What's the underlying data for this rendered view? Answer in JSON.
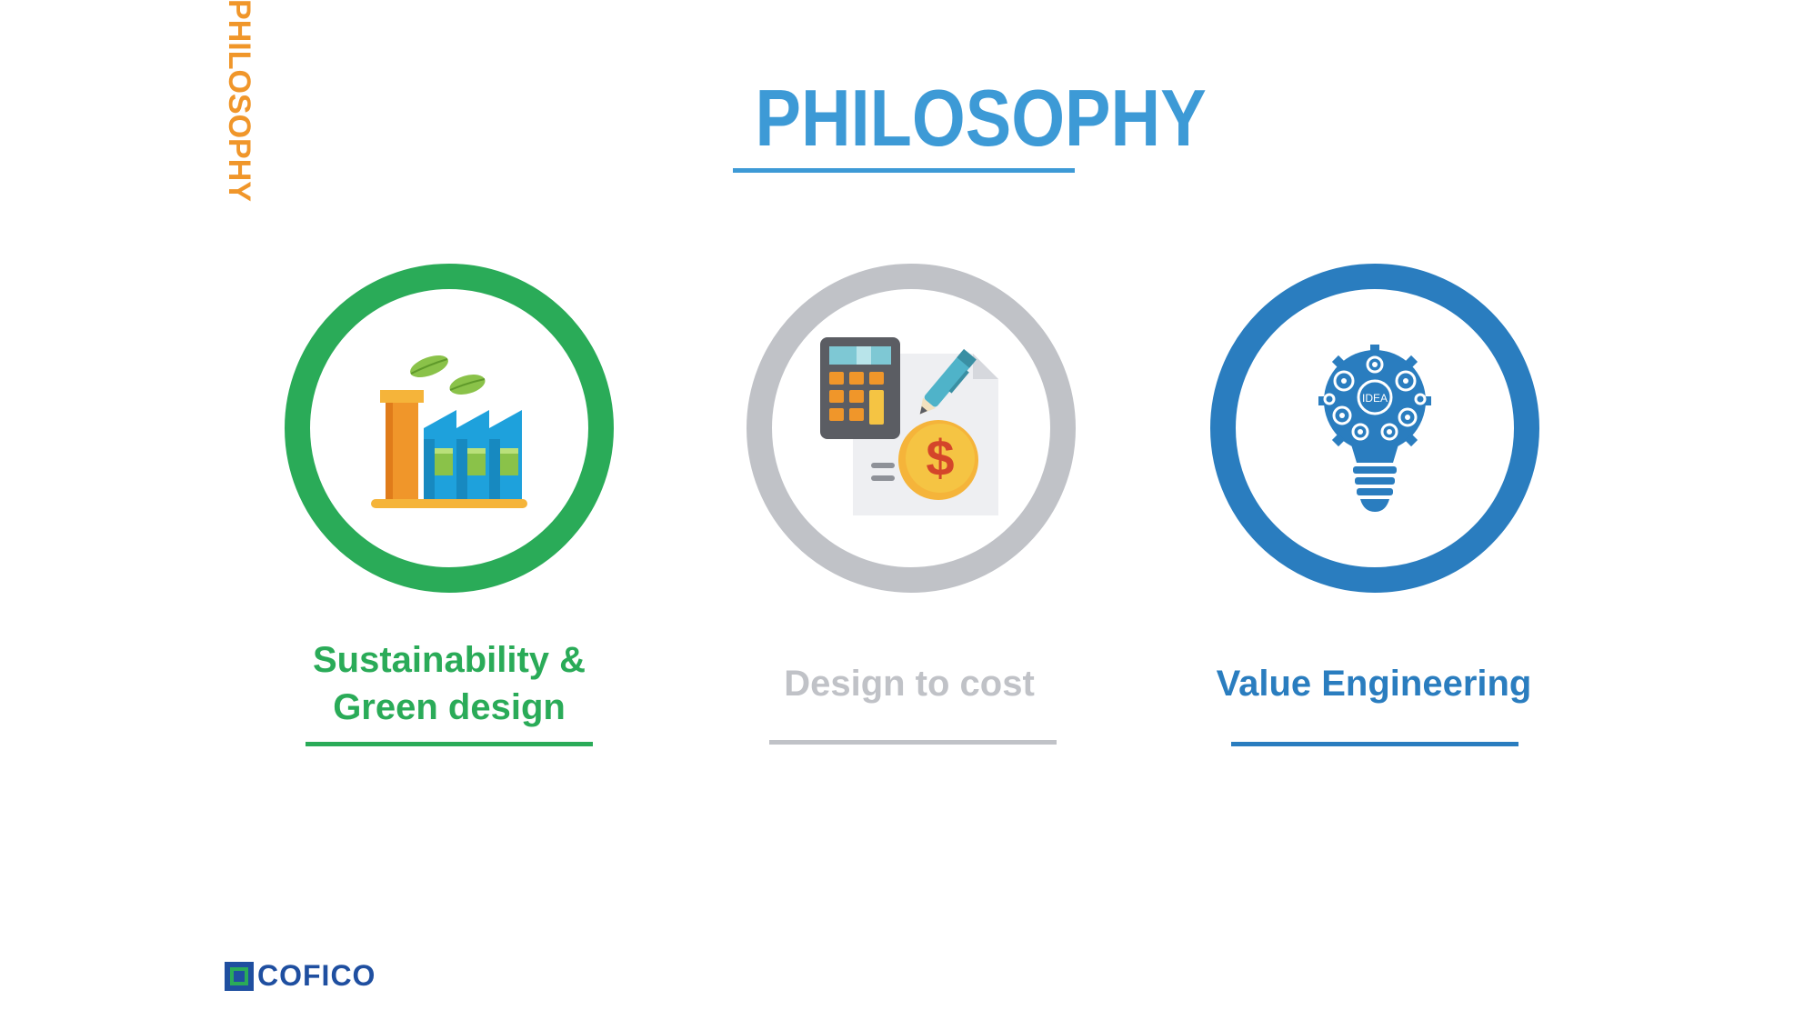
{
  "side_title": "PHILOSOPHY",
  "title": "PHILOSOPHY",
  "colors": {
    "orange": "#f0962a",
    "title_blue": "#3d9ad6",
    "green": "#2aab58",
    "gray": "#c0c2c7",
    "blue": "#2a7dbf",
    "navy": "#1f4fa0"
  },
  "items": [
    {
      "icon": "green-factory-icon",
      "label_line1": "Sustainability &",
      "label_line2": "Green design"
    },
    {
      "icon": "calculator-cost-icon",
      "label": "Design to cost"
    },
    {
      "icon": "idea-lightbulb-gears-icon",
      "label": "Value Engineering",
      "bulb_text": "IDEA"
    }
  ],
  "logo": {
    "text": "COFICO"
  }
}
